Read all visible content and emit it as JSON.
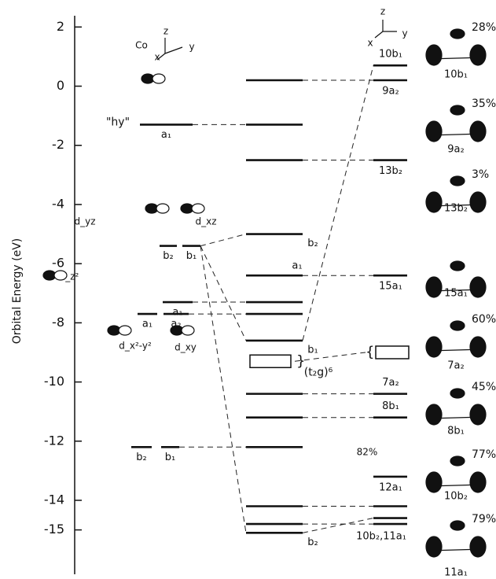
{
  "axis": {
    "label": "Orbital Energy (eV)",
    "ylim": [
      -16.5,
      2.7
    ],
    "yticks": [
      2,
      0,
      -2,
      -4,
      -6,
      -8,
      -10,
      -12,
      -14,
      -15
    ]
  },
  "hy_label": "\"hy\"",
  "fragment_levels": [
    {
      "energy": -1.3,
      "label": "a₁"
    },
    {
      "energy": -5.4,
      "label": "b₂"
    },
    {
      "energy": -5.4,
      "label": "b₁"
    },
    {
      "energy": -7.3,
      "label": "a₁"
    },
    {
      "energy": -7.7,
      "label": "a₁"
    },
    {
      "energy": -7.7,
      "label": "a₂"
    },
    {
      "energy": -12.2,
      "label": "b₂"
    },
    {
      "energy": -12.2,
      "label": "b₁"
    }
  ],
  "complex_levels": [
    {
      "energy": 0.2
    },
    {
      "energy": -1.3
    },
    {
      "energy": -2.5
    },
    {
      "energy": -5.0,
      "label": "b₂"
    },
    {
      "energy": -6.4,
      "label": "a₁"
    },
    {
      "energy": -7.3
    },
    {
      "energy": -7.7
    },
    {
      "energy": -8.6,
      "label": "b₁"
    },
    {
      "energy": -10.4
    },
    {
      "energy": -11.2
    },
    {
      "energy": -12.2
    },
    {
      "energy": -14.2
    },
    {
      "energy": -14.8
    },
    {
      "energy": -15.1,
      "label": "b₂"
    }
  ],
  "ligand_levels": [
    {
      "energy": 0.7,
      "label": "10b₁"
    },
    {
      "energy": 0.2,
      "label": "9a₂"
    },
    {
      "energy": -2.5,
      "label": "13b₂"
    },
    {
      "energy": -6.4,
      "label": "15a₁"
    },
    {
      "energy": -10.4,
      "label": "7a₂"
    },
    {
      "energy": -11.2,
      "label": "8b₁"
    },
    {
      "energy": -13.2,
      "label": "12a₁"
    },
    {
      "energy": -14.2
    },
    {
      "energy": -14.6
    },
    {
      "energy": -14.8,
      "label": "10b₂,11a₁"
    }
  ],
  "t2g_block": {
    "label": "(t₂g)⁶",
    "complex_energy": -9.3,
    "ligand_energy": -9.0
  },
  "annotations": [
    "Co",
    "z",
    "y",
    "x",
    "z",
    "y",
    "x",
    "d_yz",
    "d_xz",
    "d_z²",
    "d_x²-y²",
    "d_xy",
    "82%"
  ],
  "orbital_pictures": [
    {
      "percent": "28%",
      "label": "10b₁"
    },
    {
      "percent": "35%",
      "label": "9a₂"
    },
    {
      "percent": "3%",
      "label": "13b₂"
    },
    {
      "percent": "",
      "label": "15a₁"
    },
    {
      "percent": "60%",
      "label": "7a₂"
    },
    {
      "percent": "45%",
      "label": "8b₁"
    },
    {
      "percent": "77%",
      "label": "10b₂"
    },
    {
      "percent": "79%",
      "label": "11a₁"
    }
  ]
}
